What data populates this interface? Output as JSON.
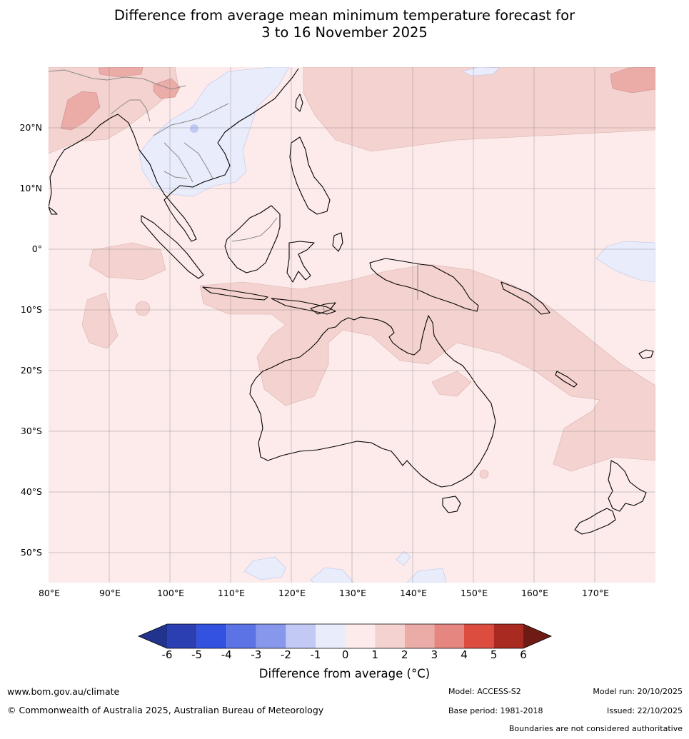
{
  "title": {
    "line1": "Difference from average mean minimum temperature forecast for",
    "line2": "3 to 16 November 2025"
  },
  "map": {
    "lat_labels": [
      "20°N",
      "10°N",
      "0°",
      "10°S",
      "20°S",
      "30°S",
      "40°S",
      "50°S"
    ],
    "lon_labels": [
      "80°E",
      "90°E",
      "100°E",
      "110°E",
      "120°E",
      "130°E",
      "140°E",
      "150°E",
      "160°E",
      "170°E"
    ],
    "background_color": "#fcebea"
  },
  "colorbar": {
    "ticks": [
      "-6",
      "-5",
      "-4",
      "-3",
      "-2",
      "-1",
      "0",
      "1",
      "2",
      "3",
      "4",
      "5",
      "6"
    ],
    "colors": [
      "#22338e",
      "#2b3fb3",
      "#3352e0",
      "#5b73e4",
      "#8798ec",
      "#c1c9f4",
      "#e9ecfb",
      "#fcebea",
      "#f4d2cf",
      "#ebaca7",
      "#e58680",
      "#dc4d40",
      "#a92a20",
      "#6e1a15"
    ],
    "label": "Difference from average (°C)"
  },
  "footer": {
    "website": "www.bom.gov.au/climate",
    "copyright": "© Commonwealth of Australia 2025, Australian Bureau of Meteorology",
    "model": "Model: ACCESS-S2",
    "base_period": "Base period: 1981-2018",
    "model_run": "Model run: 20/10/2025",
    "issued": "Issued: 22/10/2025",
    "disclaimer": "Boundaries are not considered authoritative"
  }
}
